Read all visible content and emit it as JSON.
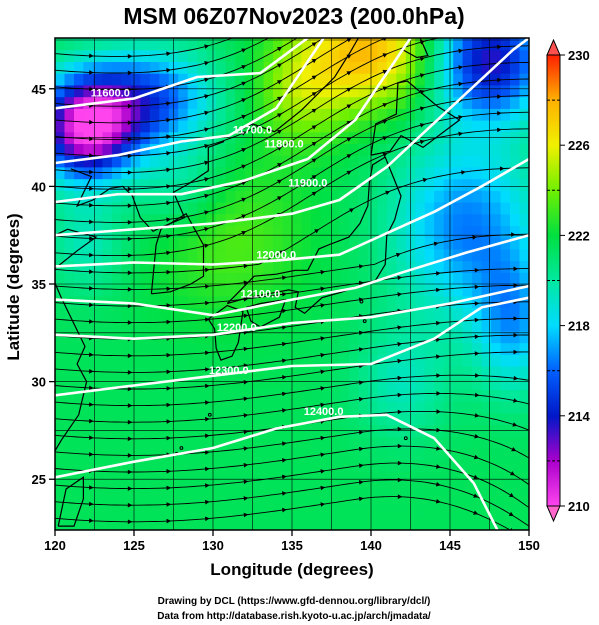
{
  "chart_data": {
    "type": "heatmap",
    "title": "MSM 06Z07Nov2023 (200.0hPa)",
    "xlabel": "Longitude (degrees)",
    "ylabel": "Latitude  (degrees)",
    "xlim": [
      120,
      150
    ],
    "ylim": [
      22.4,
      47.6
    ],
    "x_ticks": [
      120,
      125,
      130,
      135,
      140,
      145,
      150
    ],
    "y_ticks": [
      25,
      30,
      35,
      40,
      45
    ],
    "colorbar": {
      "min": 210,
      "max": 230,
      "ticks": [
        210,
        214,
        218,
        222,
        226,
        230
      ],
      "colors": [
        "#ff44ee",
        "#aa00cc",
        "#0018c8",
        "#0060ff",
        "#00dcff",
        "#00e8a0",
        "#00e040",
        "#70f000",
        "#f0f000",
        "#ffb000",
        "#ff2000"
      ],
      "dashes": [
        212,
        216,
        220,
        224,
        228
      ]
    },
    "height_contours": {
      "levels": [
        11600,
        11700,
        11800,
        11900,
        12000,
        12100,
        12200,
        12300,
        12400
      ],
      "labels": [
        "11600.0",
        "11700.0",
        "11800.0",
        "11900.0",
        "12000.0",
        "12100.0",
        "12200.0",
        "12300.0",
        "12400.0"
      ]
    },
    "colors": {
      "contour": "#ffffff",
      "streamline": "#000000",
      "grid": "#000000"
    },
    "grid": true
  },
  "footer": {
    "line1": "Drawing by DCL (https://www.gfd-dennou.org/library/dcl/)",
    "line2": "Data from http://database.rish.kyoto-u.ac.jp/arch/jmadata/"
  }
}
